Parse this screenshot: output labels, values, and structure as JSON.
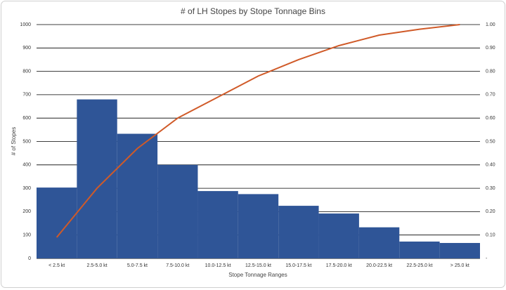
{
  "chart_data": {
    "type": "bar",
    "title": "# of LH Stopes by Stope Tonnage Bins",
    "x_label": "Stope Tonnage Ranges",
    "y_label": "# of Stopes",
    "categories": [
      "< 2.5 kt",
      "2.5-5.0 kt",
      "5.0-7.5 kt",
      "7.5-10.0 kt",
      "10.0-12.5 kt",
      "12.5-15.0 kt",
      "15.0-17.5 kt",
      "17.5-20.0 kt",
      "20.0-22.5 kt",
      "22.5-25.0 kt",
      "> 25.0 kt"
    ],
    "series": [
      {
        "type": "bar",
        "color": "#2f5597",
        "values": [
          303,
          680,
          533,
          400,
          288,
          275,
          225,
          192,
          133,
          72,
          66
        ]
      },
      {
        "type": "line",
        "color": "#d05a28",
        "axis": "y2",
        "values": [
          0.09,
          0.3,
          0.47,
          0.6,
          0.69,
          0.78,
          0.85,
          0.91,
          0.955,
          0.98,
          1.0
        ]
      }
    ],
    "ylim": [
      0,
      1000
    ],
    "yticks": [
      0,
      100,
      200,
      300,
      400,
      500,
      600,
      700,
      800,
      900,
      1000
    ],
    "y2lim": [
      0,
      1
    ],
    "y2ticks": [
      {
        "value": 0,
        "label": "-"
      },
      {
        "value": 0.1,
        "label": "0.10"
      },
      {
        "value": 0.2,
        "label": "0.20"
      },
      {
        "value": 0.3,
        "label": "0.30"
      },
      {
        "value": 0.4,
        "label": "0.40"
      },
      {
        "value": 0.5,
        "label": "0.50"
      },
      {
        "value": 0.6,
        "label": "0.60"
      },
      {
        "value": 0.7,
        "label": "0.70"
      },
      {
        "value": 0.8,
        "label": "0.80"
      },
      {
        "value": 0.9,
        "label": "0.90"
      },
      {
        "value": 1,
        "label": "1.00"
      }
    ],
    "grid": true
  }
}
